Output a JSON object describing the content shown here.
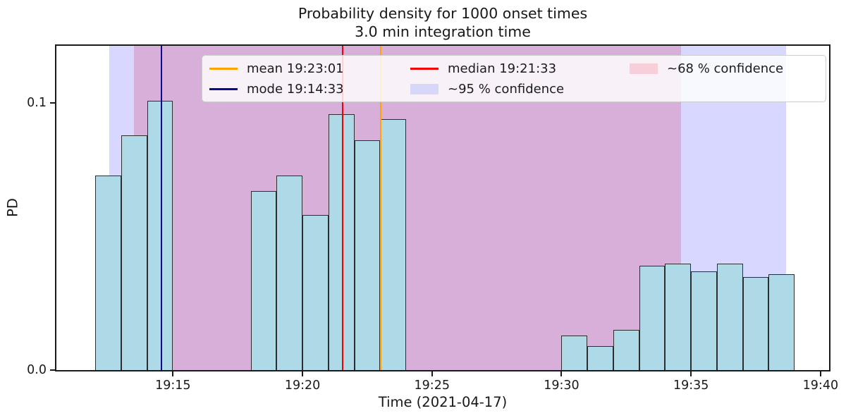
{
  "title": {
    "line1": "Probability density for 1000 onset times",
    "line2": "3.0 min integration time"
  },
  "legend": {
    "items": [
      {
        "label": "mean 19:23:01",
        "swatch": "line",
        "color": "#ffa500"
      },
      {
        "label": "mode 19:14:33",
        "swatch": "line",
        "color": "#0b0b8f"
      },
      {
        "label": "median 19:21:33",
        "swatch": "line",
        "color": "#f40000"
      },
      {
        "label": "~95 % confidence",
        "swatch": "patch",
        "color": "#d7d7fa"
      },
      {
        "label": "~68 % confidence",
        "swatch": "patch",
        "color": "#f8cfd8"
      }
    ]
  },
  "chart_data": {
    "type": "bar",
    "title": "Probability density for 1000 onset times / 3.0 min integration time",
    "xlabel": "Time (2021-04-17)",
    "ylabel": "PD",
    "grid": false,
    "legend_position": "upper center, 3 columns",
    "axis": {
      "xmin_minute": 10.5,
      "xmax_minute": 40.33,
      "ymin": 0.0,
      "ymax": 0.1215
    },
    "xticks": [
      {
        "minute": 15,
        "label": "19:15"
      },
      {
        "minute": 20,
        "label": "19:20"
      },
      {
        "minute": 25,
        "label": "19:25"
      },
      {
        "minute": 30,
        "label": "19:30"
      },
      {
        "minute": 35,
        "label": "19:35"
      },
      {
        "minute": 40,
        "label": "19:40"
      }
    ],
    "yticks": [
      {
        "value": 0.0,
        "label": "0.0"
      },
      {
        "value": 0.1,
        "label": "0.1"
      }
    ],
    "bar_color": "#aed9e6",
    "bar_edge_color": "#2e2e2e",
    "bin_width_minutes": 1,
    "bins": [
      {
        "time": "19:12",
        "minute": 12,
        "pd": 0.073
      },
      {
        "time": "19:13",
        "minute": 13,
        "pd": 0.088
      },
      {
        "time": "19:14",
        "minute": 14,
        "pd": 0.101
      },
      {
        "time": "19:18",
        "minute": 18,
        "pd": 0.067
      },
      {
        "time": "19:19",
        "minute": 19,
        "pd": 0.073
      },
      {
        "time": "19:20",
        "minute": 20,
        "pd": 0.058
      },
      {
        "time": "19:21",
        "minute": 21,
        "pd": 0.096
      },
      {
        "time": "19:22",
        "minute": 22,
        "pd": 0.086
      },
      {
        "time": "19:23",
        "minute": 23,
        "pd": 0.094
      },
      {
        "time": "19:30",
        "minute": 30,
        "pd": 0.013
      },
      {
        "time": "19:31",
        "minute": 31,
        "pd": 0.009
      },
      {
        "time": "19:32",
        "minute": 32,
        "pd": 0.015
      },
      {
        "time": "19:33",
        "minute": 33,
        "pd": 0.039
      },
      {
        "time": "19:34",
        "minute": 34,
        "pd": 0.04
      },
      {
        "time": "19:35",
        "minute": 35,
        "pd": 0.037
      },
      {
        "time": "19:36",
        "minute": 36,
        "pd": 0.04
      },
      {
        "time": "19:37",
        "minute": 37,
        "pd": 0.035
      },
      {
        "time": "19:38",
        "minute": 38,
        "pd": 0.036
      }
    ],
    "vlines": [
      {
        "name": "mean",
        "label": "mean 19:23:01",
        "time": "19:23:01",
        "minute": 23.017,
        "color": "#ffa500"
      },
      {
        "name": "mode",
        "label": "mode 19:14:33",
        "time": "19:14:33",
        "minute": 14.55,
        "color": "#0b0b8f"
      },
      {
        "name": "median",
        "label": "median 19:21:33",
        "time": "19:21:33",
        "minute": 21.55,
        "color": "#f40000"
      }
    ],
    "bands": [
      {
        "name": "95",
        "label": "~95 % confidence",
        "start_minute": 12.55,
        "end_minute": 38.67,
        "color": "rgba(0,0,255,0.155)"
      },
      {
        "name": "68",
        "label": "~68 % confidence",
        "start_minute": 13.49,
        "end_minute": 34.62,
        "color": "rgba(222,30,75,0.21)"
      }
    ]
  }
}
